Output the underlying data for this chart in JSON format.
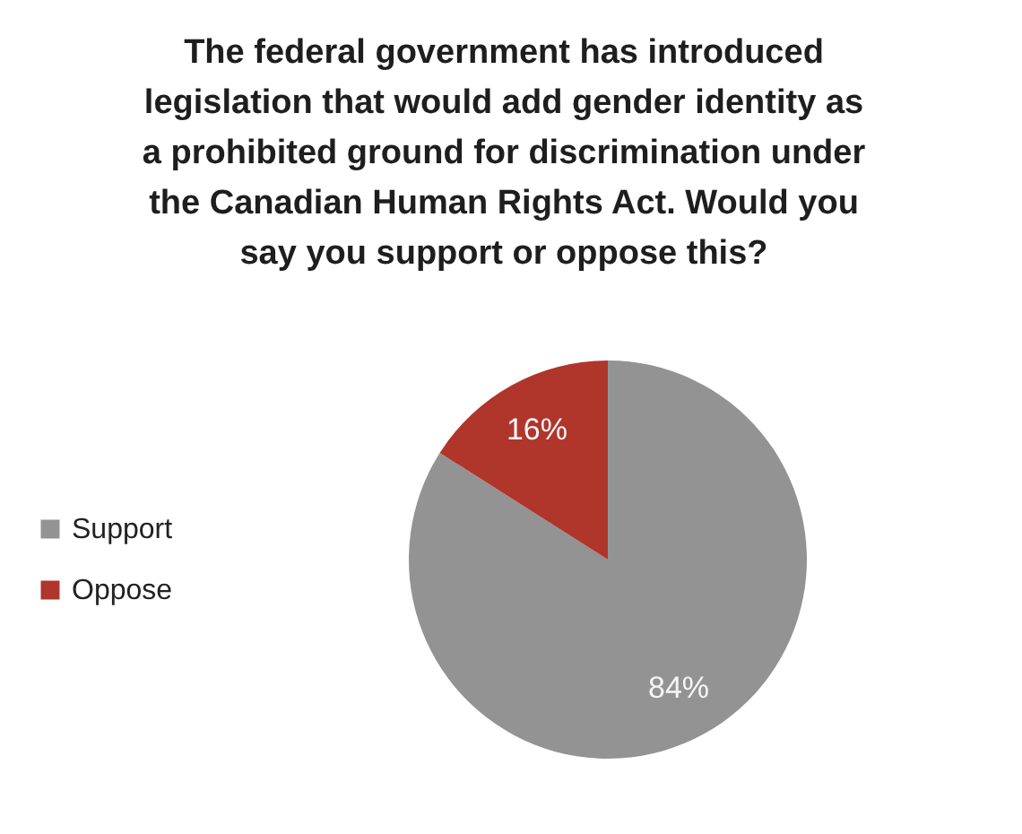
{
  "chart_data": {
    "type": "pie",
    "title": "The federal government has introduced legislation that would add gender identity as a prohibited ground for discrimination under the Canadian Human Rights Act. Would you say you support or oppose this?",
    "categories": [
      "Support",
      "Oppose"
    ],
    "values": [
      84,
      16
    ],
    "colors": [
      "#939393",
      "#b0352b"
    ],
    "value_labels": [
      "84%",
      "16%"
    ],
    "legend": "left"
  }
}
